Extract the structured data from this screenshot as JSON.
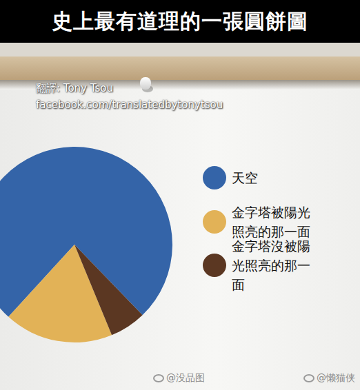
{
  "header": {
    "title": "史上最有道理的一張圓餅圖"
  },
  "credits": {
    "translator": "翻譯: Tony Tsou",
    "url": "facebook.com/translatedbytonytsou"
  },
  "watermarks": [
    "@没品图",
    "@懒猫侠"
  ],
  "chart_data": {
    "type": "pie",
    "categories": [
      "天空",
      "金字塔被陽光照亮的那一面",
      "金字塔沒被陽光照亮的那一面"
    ],
    "values": [
      76,
      18,
      6
    ],
    "colors": [
      "#3464a8",
      "#e2b257",
      "#5b3722"
    ],
    "legend": "right"
  }
}
